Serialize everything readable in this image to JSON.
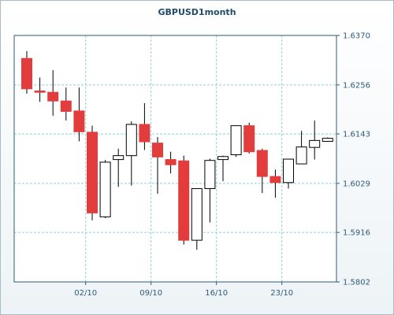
{
  "chart_data": {
    "type": "candlestick",
    "title": "GBPUSD1month",
    "xlabel": "",
    "ylabel": "",
    "ylim": [
      1.5802,
      1.637
    ],
    "ytick_labels": [
      "1.6370",
      "1.6256",
      "1.6143",
      "1.6029",
      "1.5916",
      "1.5802"
    ],
    "y_ticks": [
      1.637,
      1.6256,
      1.6143,
      1.6029,
      1.5916,
      1.5802
    ],
    "xtick_labels": [
      "02/10",
      "09/10",
      "16/10",
      "23/10"
    ],
    "xtick_at_candle": [
      4.5,
      9.5,
      14.5,
      19.5
    ],
    "grid": true,
    "up_color": "#ffffff",
    "down_color": "#e23c3c",
    "candles": [
      {
        "o": 1.6317,
        "h": 1.6334,
        "l": 1.6236,
        "c": 1.6247
      },
      {
        "o": 1.6242,
        "h": 1.6273,
        "l": 1.6217,
        "c": 1.6239
      },
      {
        "o": 1.6239,
        "h": 1.629,
        "l": 1.6185,
        "c": 1.6219
      },
      {
        "o": 1.6219,
        "h": 1.625,
        "l": 1.6174,
        "c": 1.6195
      },
      {
        "o": 1.6196,
        "h": 1.625,
        "l": 1.6126,
        "c": 1.6148
      },
      {
        "o": 1.6147,
        "h": 1.6162,
        "l": 1.5944,
        "c": 1.5961
      },
      {
        "o": 1.5952,
        "h": 1.6083,
        "l": 1.5949,
        "c": 1.6078
      },
      {
        "o": 1.6084,
        "h": 1.6109,
        "l": 1.6021,
        "c": 1.6093
      },
      {
        "o": 1.6093,
        "h": 1.6172,
        "l": 1.6024,
        "c": 1.6165
      },
      {
        "o": 1.6165,
        "h": 1.6214,
        "l": 1.6106,
        "c": 1.6125
      },
      {
        "o": 1.6122,
        "h": 1.6136,
        "l": 1.6005,
        "c": 1.609
      },
      {
        "o": 1.6084,
        "h": 1.6102,
        "l": 1.6052,
        "c": 1.6072
      },
      {
        "o": 1.6081,
        "h": 1.6093,
        "l": 1.5888,
        "c": 1.5898
      },
      {
        "o": 1.5898,
        "h": 1.6017,
        "l": 1.5876,
        "c": 1.6017
      },
      {
        "o": 1.6017,
        "h": 1.6086,
        "l": 1.5939,
        "c": 1.6082
      },
      {
        "o": 1.6084,
        "h": 1.6093,
        "l": 1.6034,
        "c": 1.6091
      },
      {
        "o": 1.6095,
        "h": 1.6162,
        "l": 1.609,
        "c": 1.6162
      },
      {
        "o": 1.6162,
        "h": 1.6169,
        "l": 1.6098,
        "c": 1.6102
      },
      {
        "o": 1.6105,
        "h": 1.6109,
        "l": 1.6007,
        "c": 1.6045
      },
      {
        "o": 1.6045,
        "h": 1.6061,
        "l": 1.5996,
        "c": 1.6031
      },
      {
        "o": 1.6031,
        "h": 1.6085,
        "l": 1.6017,
        "c": 1.6085
      },
      {
        "o": 1.6074,
        "h": 1.615,
        "l": 1.6074,
        "c": 1.6113
      },
      {
        "o": 1.6112,
        "h": 1.6174,
        "l": 1.6084,
        "c": 1.6128
      },
      {
        "o": 1.6126,
        "h": 1.6135,
        "l": 1.6125,
        "c": 1.6133
      }
    ]
  }
}
